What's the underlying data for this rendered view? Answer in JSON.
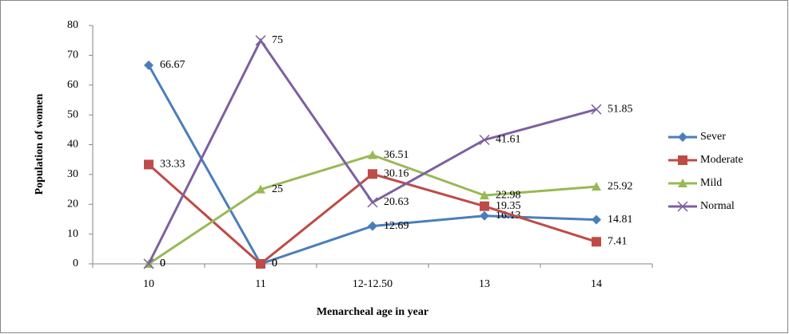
{
  "chart_data": {
    "type": "line",
    "y_label": "Population of women",
    "x_label": "Menarcheal age in year",
    "categories": [
      "10",
      "11",
      "12-12.50",
      "13",
      "14"
    ],
    "ylim": [
      0,
      80
    ],
    "yticks": [
      0,
      10,
      20,
      30,
      40,
      50,
      60,
      70,
      80
    ],
    "grid": false,
    "legend": "right",
    "series": [
      {
        "name": "Sever",
        "color": "#4a7ebb",
        "marker": "diamond",
        "values": [
          66.67,
          0,
          12.69,
          16.13,
          14.81
        ]
      },
      {
        "name": "Moderate",
        "color": "#be4b48",
        "marker": "square",
        "values": [
          33.33,
          0,
          30.16,
          19.35,
          7.41
        ]
      },
      {
        "name": "Mild",
        "color": "#98b954",
        "marker": "triangle",
        "values": [
          0,
          25,
          36.51,
          22.98,
          25.92
        ]
      },
      {
        "name": "Normal",
        "color": "#7d60a0",
        "marker": "x",
        "values": [
          0,
          75,
          20.63,
          41.61,
          51.85
        ]
      }
    ]
  }
}
